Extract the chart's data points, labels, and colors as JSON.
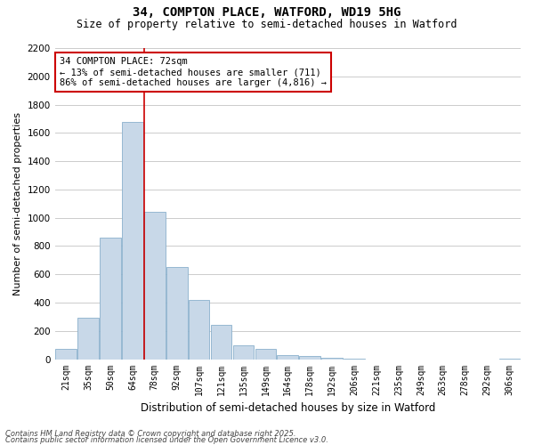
{
  "title_line1": "34, COMPTON PLACE, WATFORD, WD19 5HG",
  "title_line2": "Size of property relative to semi-detached houses in Watford",
  "xlabel": "Distribution of semi-detached houses by size in Watford",
  "ylabel": "Number of semi-detached properties",
  "annotation_title": "34 COMPTON PLACE: 72sqm",
  "annotation_line2": "← 13% of semi-detached houses are smaller (711)",
  "annotation_line3": "86% of semi-detached houses are larger (4,816) →",
  "footer_line1": "Contains HM Land Registry data © Crown copyright and database right 2025.",
  "footer_line2": "Contains public sector information licensed under the Open Government Licence v3.0.",
  "categories": [
    "21sqm",
    "35sqm",
    "50sqm",
    "64sqm",
    "78sqm",
    "92sqm",
    "107sqm",
    "121sqm",
    "135sqm",
    "149sqm",
    "164sqm",
    "178sqm",
    "192sqm",
    "206sqm",
    "221sqm",
    "235sqm",
    "249sqm",
    "263sqm",
    "278sqm",
    "292sqm",
    "306sqm"
  ],
  "values": [
    70,
    290,
    860,
    1680,
    1040,
    650,
    420,
    240,
    100,
    70,
    30,
    20,
    10,
    5,
    0,
    0,
    0,
    0,
    0,
    0,
    5
  ],
  "bar_color": "#c8d8e8",
  "bar_edge_color": "#8ab0cc",
  "highlight_line_color": "#cc0000",
  "highlight_bar_index": 4,
  "annotation_box_color": "#ffffff",
  "annotation_border_color": "#cc0000",
  "ylim": [
    0,
    2200
  ],
  "yticks": [
    0,
    200,
    400,
    600,
    800,
    1000,
    1200,
    1400,
    1600,
    1800,
    2000,
    2200
  ],
  "grid_color": "#cccccc",
  "background_color": "#ffffff"
}
